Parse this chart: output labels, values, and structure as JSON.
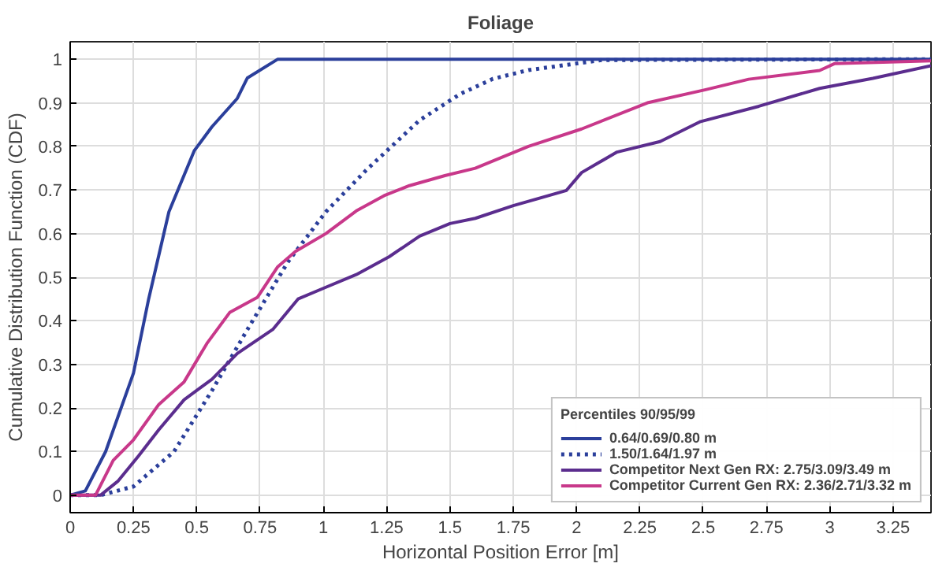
{
  "chart_data": {
    "type": "line",
    "title": "Foliage",
    "xlabel": "Horizontal Position Error [m]",
    "ylabel": "Cumulative Distribution Function (CDF)",
    "legend_title": "Percentiles 90/95/99",
    "legend": "bottom right",
    "grid": true,
    "xlim": [
      0,
      3.4
    ],
    "ylim": [
      -0.04,
      1.04
    ],
    "xticks": [
      0,
      0.25,
      0.5,
      0.75,
      1,
      1.25,
      1.5,
      1.75,
      2,
      2.25,
      2.5,
      2.75,
      3,
      3.25
    ],
    "yticks": [
      0,
      0.1,
      0.2,
      0.3,
      0.4,
      0.5,
      0.6,
      0.7,
      0.8,
      0.9,
      1
    ],
    "series": [
      {
        "name": "0.64/0.69/0.80 m",
        "color": "#2b3f9b",
        "line_style": "solid",
        "x": [
          0,
          0.06,
          0.14,
          0.25,
          0.31,
          0.39,
          0.49,
          0.56,
          0.66,
          0.7,
          0.82,
          3.4
        ],
        "values": [
          0,
          0.01,
          0.1,
          0.28,
          0.45,
          0.65,
          0.79,
          0.845,
          0.91,
          0.957,
          1,
          1
        ]
      },
      {
        "name": "1.50/1.64/1.97 m",
        "color": "#2b3f9b",
        "line_style": "dotted",
        "x": [
          0,
          0.12,
          0.25,
          0.41,
          0.56,
          0.7,
          0.86,
          1.01,
          1.17,
          1.38,
          1.54,
          1.67,
          1.81,
          2.1,
          3.4
        ],
        "values": [
          0,
          0,
          0.02,
          0.1,
          0.24,
          0.38,
          0.535,
          0.65,
          0.746,
          0.86,
          0.92,
          0.955,
          0.975,
          0.998,
          1
        ]
      },
      {
        "name": "Competitor Next Gen RX: 2.75/3.09/3.49 m",
        "color": "#5b2d8e",
        "line_style": "solid",
        "x": [
          0,
          0.12,
          0.19,
          0.27,
          0.35,
          0.45,
          0.56,
          0.66,
          0.8,
          0.9,
          1.01,
          1.13,
          1.26,
          1.38,
          1.5,
          1.6,
          1.75,
          1.96,
          2.02,
          2.16,
          2.33,
          2.49,
          2.72,
          2.96,
          3.17,
          3.4
        ],
        "values": [
          0,
          0,
          0.033,
          0.09,
          0.15,
          0.219,
          0.266,
          0.325,
          0.38,
          0.45,
          0.477,
          0.506,
          0.547,
          0.594,
          0.623,
          0.635,
          0.664,
          0.699,
          0.74,
          0.787,
          0.811,
          0.857,
          0.892,
          0.933,
          0.956,
          0.985
        ]
      },
      {
        "name": "Competitor Current Gen RX: 2.36/2.71/3.32 m",
        "color": "#c8388a",
        "line_style": "solid",
        "x": [
          0,
          0.1,
          0.17,
          0.25,
          0.35,
          0.45,
          0.54,
          0.63,
          0.74,
          0.82,
          0.89,
          1.01,
          1.13,
          1.24,
          1.34,
          1.48,
          1.6,
          1.81,
          2.02,
          2.28,
          2.51,
          2.68,
          2.96,
          3.02,
          3.4
        ],
        "values": [
          0,
          0,
          0.08,
          0.127,
          0.208,
          0.26,
          0.348,
          0.419,
          0.454,
          0.524,
          0.559,
          0.6,
          0.652,
          0.687,
          0.71,
          0.733,
          0.75,
          0.8,
          0.84,
          0.9,
          0.93,
          0.954,
          0.974,
          0.99,
          0.996
        ]
      }
    ]
  }
}
